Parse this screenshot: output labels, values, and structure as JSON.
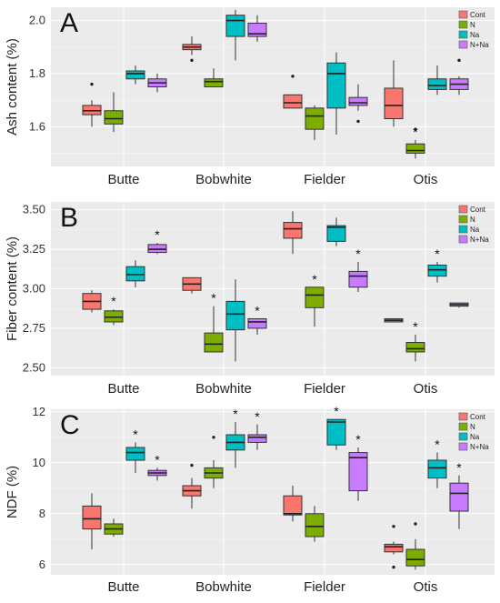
{
  "chart_data": [
    {
      "type": "box",
      "panel_label": "A",
      "ylabel": "Ash content (%)",
      "ylim": [
        1.45,
        2.05
      ],
      "yticks": [
        1.6,
        1.8,
        2.0
      ],
      "ytick_labels": [
        "1.6",
        "1.8",
        "2.0"
      ],
      "categories": [
        "Butte",
        "Bobwhite",
        "Fielder",
        "Otis"
      ],
      "legend": [
        "Cont",
        "N",
        "Na",
        "N+Na"
      ],
      "colors": [
        "#f8766d",
        "#7cae00",
        "#00bfc4",
        "#c77cff"
      ],
      "boxes": [
        [
          {
            "min": 1.6,
            "q1": 1.645,
            "median": 1.66,
            "q3": 1.68,
            "max": 1.7,
            "outliers": [
              1.76
            ],
            "star": false
          },
          {
            "min": 1.58,
            "q1": 1.61,
            "median": 1.63,
            "q3": 1.66,
            "max": 1.73,
            "outliers": [],
            "star": false
          },
          {
            "min": 1.76,
            "q1": 1.78,
            "median": 1.8,
            "q3": 1.81,
            "max": 1.83,
            "outliers": [],
            "star": false
          },
          {
            "min": 1.73,
            "q1": 1.75,
            "median": 1.765,
            "q3": 1.78,
            "max": 1.8,
            "outliers": [],
            "star": false
          }
        ],
        [
          {
            "min": 1.87,
            "q1": 1.89,
            "median": 1.9,
            "q3": 1.91,
            "max": 1.94,
            "outliers": [
              1.85
            ],
            "star": false
          },
          {
            "min": 1.75,
            "q1": 1.75,
            "median": 1.77,
            "q3": 1.78,
            "max": 1.82,
            "outliers": [],
            "star": false
          },
          {
            "min": 1.85,
            "q1": 1.94,
            "median": 2.0,
            "q3": 2.02,
            "max": 2.04,
            "outliers": [],
            "star": false
          },
          {
            "min": 1.92,
            "q1": 1.94,
            "median": 1.95,
            "q3": 1.99,
            "max": 2.02,
            "outliers": [],
            "star": false
          }
        ],
        [
          {
            "min": 1.67,
            "q1": 1.67,
            "median": 1.69,
            "q3": 1.72,
            "max": 1.72,
            "outliers": [
              1.79
            ],
            "star": false
          },
          {
            "min": 1.55,
            "q1": 1.59,
            "median": 1.64,
            "q3": 1.67,
            "max": 1.68,
            "outliers": [],
            "star": false
          },
          {
            "min": 1.57,
            "q1": 1.67,
            "median": 1.8,
            "q3": 1.84,
            "max": 1.88,
            "outliers": [],
            "star": false
          },
          {
            "min": 1.66,
            "q1": 1.68,
            "median": 1.69,
            "q3": 1.71,
            "max": 1.76,
            "outliers": [
              1.62
            ],
            "star": false
          }
        ],
        [
          {
            "min": 1.6,
            "q1": 1.63,
            "median": 1.68,
            "q3": 1.745,
            "max": 1.85,
            "outliers": [],
            "star": false
          },
          {
            "min": 1.48,
            "q1": 1.5,
            "median": 1.51,
            "q3": 1.535,
            "max": 1.55,
            "outliers": [
              1.59
            ],
            "star": true
          },
          {
            "min": 1.72,
            "q1": 1.74,
            "median": 1.755,
            "q3": 1.78,
            "max": 1.83,
            "outliers": [],
            "star": false
          },
          {
            "min": 1.72,
            "q1": 1.74,
            "median": 1.76,
            "q3": 1.78,
            "max": 1.79,
            "outliers": [
              1.85
            ],
            "star": false
          }
        ]
      ]
    },
    {
      "type": "box",
      "panel_label": "B",
      "ylabel": "Fiber content (%)",
      "ylim": [
        2.45,
        3.55
      ],
      "yticks": [
        2.5,
        2.75,
        3.0,
        3.25,
        3.5
      ],
      "ytick_labels": [
        "2.50",
        "2.75",
        "3.00",
        "3.25",
        "3.50"
      ],
      "categories": [
        "Butte",
        "Bobwhite",
        "Fielder",
        "Otis"
      ],
      "legend": [
        "Cont",
        "N",
        "Na",
        "N+Na"
      ],
      "colors": [
        "#f8766d",
        "#7cae00",
        "#00bfc4",
        "#c77cff"
      ],
      "boxes": [
        [
          {
            "min": 2.85,
            "q1": 2.87,
            "median": 2.92,
            "q3": 2.97,
            "max": 2.99,
            "outliers": [],
            "star": false
          },
          {
            "min": 2.77,
            "q1": 2.79,
            "median": 2.82,
            "q3": 2.86,
            "max": 2.87,
            "outliers": [],
            "star": true
          },
          {
            "min": 3.01,
            "q1": 3.05,
            "median": 3.09,
            "q3": 3.14,
            "max": 3.18,
            "outliers": [],
            "star": false
          },
          {
            "min": 3.22,
            "q1": 3.23,
            "median": 3.25,
            "q3": 3.28,
            "max": 3.29,
            "outliers": [],
            "star": true
          }
        ],
        [
          {
            "min": 2.97,
            "q1": 2.99,
            "median": 3.03,
            "q3": 3.07,
            "max": 3.07,
            "outliers": [],
            "star": false
          },
          {
            "min": 2.6,
            "q1": 2.6,
            "median": 2.65,
            "q3": 2.72,
            "max": 2.89,
            "outliers": [],
            "star": true
          },
          {
            "min": 2.54,
            "q1": 2.74,
            "median": 2.84,
            "q3": 2.92,
            "max": 3.06,
            "outliers": [],
            "star": false
          },
          {
            "min": 2.71,
            "q1": 2.75,
            "median": 2.79,
            "q3": 2.81,
            "max": 2.81,
            "outliers": [],
            "star": true
          }
        ],
        [
          {
            "min": 3.22,
            "q1": 3.32,
            "median": 3.38,
            "q3": 3.42,
            "max": 3.49,
            "outliers": [],
            "star": false
          },
          {
            "min": 2.76,
            "q1": 2.88,
            "median": 2.96,
            "q3": 3.01,
            "max": 3.01,
            "outliers": [],
            "star": true
          },
          {
            "min": 3.27,
            "q1": 3.3,
            "median": 3.39,
            "q3": 3.4,
            "max": 3.45,
            "outliers": [],
            "star": false
          },
          {
            "min": 2.98,
            "q1": 3.01,
            "median": 3.08,
            "q3": 3.11,
            "max": 3.17,
            "outliers": [],
            "star": true
          }
        ],
        [
          {
            "min": 2.79,
            "q1": 2.79,
            "median": 2.8,
            "q3": 2.81,
            "max": 2.81,
            "outliers": [],
            "star": false
          },
          {
            "min": 2.54,
            "q1": 2.6,
            "median": 2.62,
            "q3": 2.66,
            "max": 2.71,
            "outliers": [],
            "star": true
          },
          {
            "min": 3.04,
            "q1": 3.08,
            "median": 3.12,
            "q3": 3.15,
            "max": 3.17,
            "outliers": [],
            "star": true
          },
          {
            "min": 2.88,
            "q1": 2.89,
            "median": 2.9,
            "q3": 2.91,
            "max": 2.91,
            "outliers": [],
            "star": false
          }
        ]
      ]
    },
    {
      "type": "box",
      "panel_label": "C",
      "ylabel": "NDF (%)",
      "ylim": [
        5.6,
        12.1
      ],
      "yticks": [
        6,
        8,
        10,
        12
      ],
      "ytick_labels": [
        "6",
        "8",
        "10",
        "12"
      ],
      "categories": [
        "Butte",
        "Bobwhite",
        "Fielder",
        "Otis"
      ],
      "legend": [
        "Cont",
        "N",
        "Na",
        "N+Na"
      ],
      "colors": [
        "#f8766d",
        "#7cae00",
        "#00bfc4",
        "#c77cff"
      ],
      "boxes": [
        [
          {
            "min": 6.6,
            "q1": 7.4,
            "median": 7.8,
            "q3": 8.3,
            "max": 8.8,
            "outliers": [],
            "star": false
          },
          {
            "min": 7.1,
            "q1": 7.2,
            "median": 7.4,
            "q3": 7.6,
            "max": 7.8,
            "outliers": [],
            "star": false
          },
          {
            "min": 9.6,
            "q1": 10.1,
            "median": 10.4,
            "q3": 10.6,
            "max": 10.8,
            "outliers": [],
            "star": true
          },
          {
            "min": 9.3,
            "q1": 9.5,
            "median": 9.6,
            "q3": 9.7,
            "max": 9.8,
            "outliers": [],
            "star": true
          }
        ],
        [
          {
            "min": 8.2,
            "q1": 8.7,
            "median": 8.9,
            "q3": 9.1,
            "max": 9.4,
            "outliers": [
              9.9
            ],
            "star": false
          },
          {
            "min": 9.0,
            "q1": 9.4,
            "median": 9.6,
            "q3": 9.8,
            "max": 10.1,
            "outliers": [
              11.0
            ],
            "star": false
          },
          {
            "min": 9.8,
            "q1": 10.5,
            "median": 10.8,
            "q3": 11.1,
            "max": 11.6,
            "outliers": [],
            "star": true
          },
          {
            "min": 10.5,
            "q1": 10.8,
            "median": 11.0,
            "q3": 11.1,
            "max": 11.5,
            "outliers": [],
            "star": true
          }
        ],
        [
          {
            "min": 7.7,
            "q1": 7.95,
            "median": 8.0,
            "q3": 8.7,
            "max": 9.1,
            "outliers": [],
            "star": false
          },
          {
            "min": 6.9,
            "q1": 7.1,
            "median": 7.5,
            "q3": 8.0,
            "max": 8.3,
            "outliers": [],
            "star": false
          },
          {
            "min": 10.5,
            "q1": 10.7,
            "median": 11.6,
            "q3": 11.7,
            "max": 11.7,
            "outliers": [],
            "star": true
          },
          {
            "min": 8.5,
            "q1": 8.9,
            "median": 10.2,
            "q3": 10.4,
            "max": 10.6,
            "outliers": [],
            "star": true
          }
        ],
        [
          {
            "min": 6.4,
            "q1": 6.5,
            "median": 6.7,
            "q3": 6.8,
            "max": 6.9,
            "outliers": [
              7.5,
              5.9
            ],
            "star": false
          },
          {
            "min": 5.8,
            "q1": 5.95,
            "median": 6.2,
            "q3": 6.6,
            "max": 7.0,
            "outliers": [
              7.6
            ],
            "star": false
          },
          {
            "min": 9.0,
            "q1": 9.4,
            "median": 9.8,
            "q3": 10.1,
            "max": 10.4,
            "outliers": [],
            "star": true
          },
          {
            "min": 7.4,
            "q1": 8.1,
            "median": 8.8,
            "q3": 9.2,
            "max": 9.5,
            "outliers": [],
            "star": true
          }
        ]
      ]
    }
  ],
  "significance_marker": "*"
}
